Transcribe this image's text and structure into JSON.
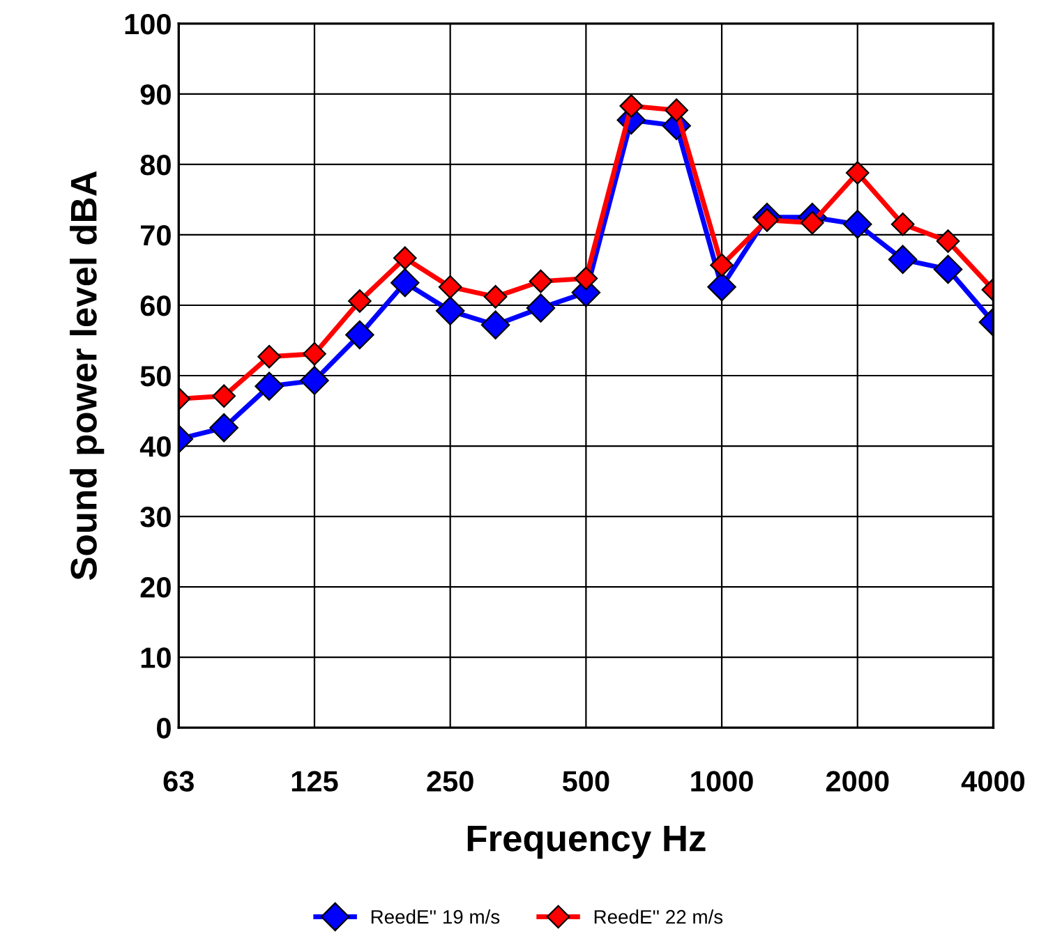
{
  "chart_data": {
    "type": "line",
    "xlabel": "Frequency Hz",
    "ylabel": "Sound power level dBA",
    "categories": [
      "63",
      null,
      null,
      "125",
      null,
      null,
      "250",
      null,
      null,
      "500",
      null,
      null,
      "1000",
      null,
      null,
      "2000",
      null,
      null,
      "4000"
    ],
    "series": [
      {
        "name": "ReedE'' 19 m/s",
        "color": "#0000ff",
        "values": [
          41,
          42.6,
          48.5,
          49.3,
          55.8,
          63.2,
          59.2,
          57.2,
          59.6,
          61.8,
          86.3,
          85.5,
          62.6,
          72.5,
          72.5,
          71.5,
          66.5,
          65.1,
          57.6
        ]
      },
      {
        "name": "ReedE'' 22 m/s",
        "color": "#ff0000",
        "values": [
          46.7,
          47.1,
          52.7,
          53.1,
          60.6,
          66.7,
          62.6,
          61.2,
          63.4,
          63.8,
          88.3,
          87.7,
          65.7,
          72.1,
          71.7,
          78.8,
          71.5,
          69.1,
          62.2
        ]
      }
    ],
    "ylim": [
      0,
      100
    ],
    "yticks": [
      0,
      10,
      20,
      30,
      40,
      50,
      60,
      70,
      80,
      90,
      100
    ],
    "grid": true,
    "legend": "bottom",
    "marker": "diamond",
    "line_style": "solid"
  }
}
